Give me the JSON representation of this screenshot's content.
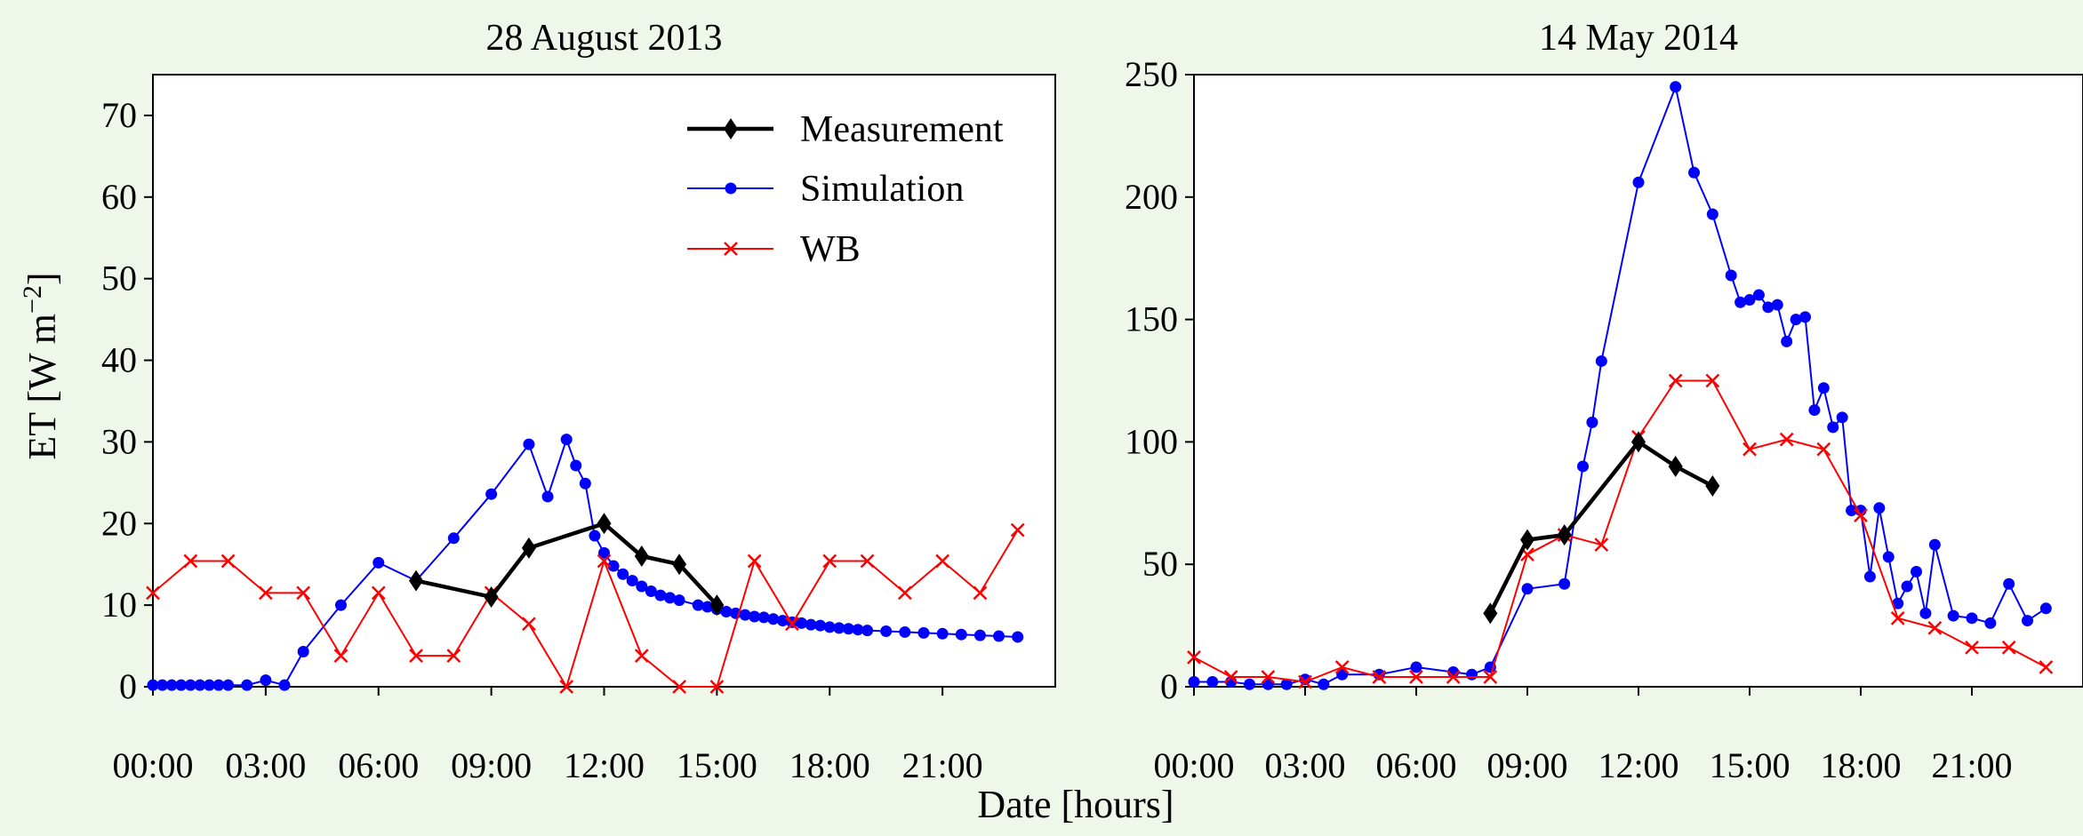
{
  "figure": {
    "xlabel": "Date [hours]",
    "ylabel": "ET [W m",
    "ylabel_exp": "−2",
    "ylabel_end": "]"
  },
  "chart_data": [
    {
      "type": "line",
      "title": "28 August 2013",
      "xlabel": "Date [hours]",
      "ylabel": "ET [W m⁻²]",
      "x_unit": "hours",
      "xlim": [
        0,
        24
      ],
      "ylim": [
        0,
        75
      ],
      "xticks": [
        0,
        3,
        6,
        9,
        12,
        15,
        18,
        21
      ],
      "xtick_labels": [
        "00:00",
        "03:00",
        "06:00",
        "09:00",
        "12:00",
        "15:00",
        "18:00",
        "21:00"
      ],
      "yticks": [
        0,
        10,
        20,
        30,
        40,
        50,
        60,
        70
      ],
      "ytick_labels": [
        "0",
        "10",
        "20",
        "30",
        "40",
        "50",
        "60",
        "70"
      ],
      "grid": false,
      "legend": "top-right",
      "series": [
        {
          "name": "Measurement",
          "color": "#000000",
          "marker": "diamond",
          "x": [
            7,
            9,
            10,
            12,
            13,
            14,
            15
          ],
          "y": [
            13,
            11,
            17,
            20,
            16,
            15,
            10
          ]
        },
        {
          "name": "Simulation",
          "color": "#0000ff",
          "marker": "dot",
          "x": [
            0,
            0.25,
            0.5,
            0.75,
            1,
            1.25,
            1.5,
            1.75,
            2,
            2.5,
            3,
            3.5,
            4,
            5,
            6,
            7,
            8,
            9,
            10,
            10.5,
            11,
            11.25,
            11.5,
            11.75,
            12,
            12.25,
            12.5,
            12.75,
            13,
            13.25,
            13.5,
            13.75,
            14,
            14.5,
            14.75,
            15,
            15.25,
            15.5,
            15.75,
            16,
            16.25,
            16.5,
            16.75,
            17,
            17.25,
            17.5,
            17.75,
            18,
            18.25,
            18.5,
            18.75,
            19,
            19.5,
            20,
            20.5,
            21,
            21.5,
            22,
            22.5,
            23
          ],
          "y": [
            0.2,
            0.2,
            0.2,
            0.2,
            0.2,
            0.2,
            0.2,
            0.2,
            0.2,
            0.2,
            0.8,
            0.2,
            4.3,
            10,
            15.2,
            13,
            18.2,
            23.6,
            29.7,
            23.3,
            30.3,
            27.1,
            24.9,
            18.5,
            16.4,
            14.8,
            13.8,
            13,
            12.3,
            11.7,
            11.2,
            10.9,
            10.6,
            10,
            9.8,
            9.5,
            9.2,
            9,
            8.8,
            8.6,
            8.5,
            8.3,
            8.1,
            7.9,
            7.8,
            7.6,
            7.5,
            7.3,
            7.2,
            7.1,
            7,
            6.9,
            6.8,
            6.7,
            6.6,
            6.5,
            6.4,
            6.3,
            6.2,
            6.1
          ]
        },
        {
          "name": "WB",
          "color": "#ff0000",
          "marker": "x",
          "x": [
            0,
            1,
            2,
            3,
            4,
            5,
            6,
            7,
            8,
            9,
            10,
            11,
            12,
            13,
            14,
            15,
            16,
            17,
            18,
            19,
            20,
            21,
            22,
            23
          ],
          "y": [
            11.5,
            15.4,
            15.4,
            11.5,
            11.5,
            3.8,
            11.5,
            3.8,
            3.8,
            11.5,
            7.7,
            0,
            15.4,
            3.8,
            0,
            0,
            15.4,
            7.7,
            15.4,
            15.4,
            11.5,
            15.4,
            11.5,
            19.2
          ]
        }
      ]
    },
    {
      "type": "line",
      "title": "14 May 2014",
      "xlabel": "Date [hours]",
      "x_unit": "hours",
      "xlim": [
        0,
        24
      ],
      "ylim": [
        0,
        250
      ],
      "xticks": [
        0,
        3,
        6,
        9,
        12,
        15,
        18,
        21
      ],
      "xtick_labels": [
        "00:00",
        "03:00",
        "06:00",
        "09:00",
        "12:00",
        "15:00",
        "18:00",
        "21:00"
      ],
      "yticks": [
        0,
        50,
        100,
        150,
        200,
        250
      ],
      "ytick_labels": [
        "0",
        "50",
        "100",
        "150",
        "200",
        "250"
      ],
      "grid": false,
      "series": [
        {
          "name": "Measurement",
          "color": "#000000",
          "marker": "diamond",
          "x": [
            8,
            9,
            10,
            12,
            13,
            14
          ],
          "y": [
            30,
            60,
            62,
            100,
            90,
            82
          ]
        },
        {
          "name": "Simulation",
          "color": "#0000ff",
          "marker": "dot",
          "x": [
            0,
            0.5,
            1,
            1.5,
            2,
            2.5,
            3,
            3.5,
            4,
            5,
            6,
            7,
            7.5,
            8,
            9,
            10,
            10.5,
            10.75,
            11,
            12,
            13,
            13.5,
            14,
            14.5,
            14.75,
            15,
            15.25,
            15.5,
            15.75,
            16,
            16.25,
            16.5,
            16.75,
            17,
            17.25,
            17.5,
            17.75,
            18,
            18.25,
            18.5,
            18.75,
            19,
            19.25,
            19.5,
            19.75,
            20,
            20.5,
            21,
            21.5,
            22,
            22.5,
            23
          ],
          "y": [
            2,
            2,
            2,
            1,
            1,
            1,
            3,
            1,
            5,
            5,
            8,
            6,
            5,
            8,
            40,
            42,
            90,
            108,
            133,
            206,
            245,
            210,
            193,
            168,
            157,
            158,
            160,
            155,
            156,
            141,
            150,
            151,
            113,
            122,
            106,
            110,
            72,
            72,
            45,
            73,
            53,
            34,
            41,
            47,
            30,
            58,
            29,
            28,
            26,
            42,
            27,
            32
          ]
        },
        {
          "name": "WB",
          "color": "#ff0000",
          "marker": "x",
          "x": [
            0,
            1,
            2,
            3,
            4,
            5,
            6,
            7,
            8,
            9,
            10,
            11,
            12,
            13,
            14,
            15,
            16,
            17,
            18,
            19,
            20,
            21,
            22,
            23
          ],
          "y": [
            12,
            4,
            4,
            2,
            8,
            4,
            4,
            4,
            4,
            54,
            62,
            58,
            102,
            125,
            125,
            97,
            101,
            97,
            70,
            28,
            24,
            16,
            16,
            8
          ]
        }
      ]
    }
  ]
}
